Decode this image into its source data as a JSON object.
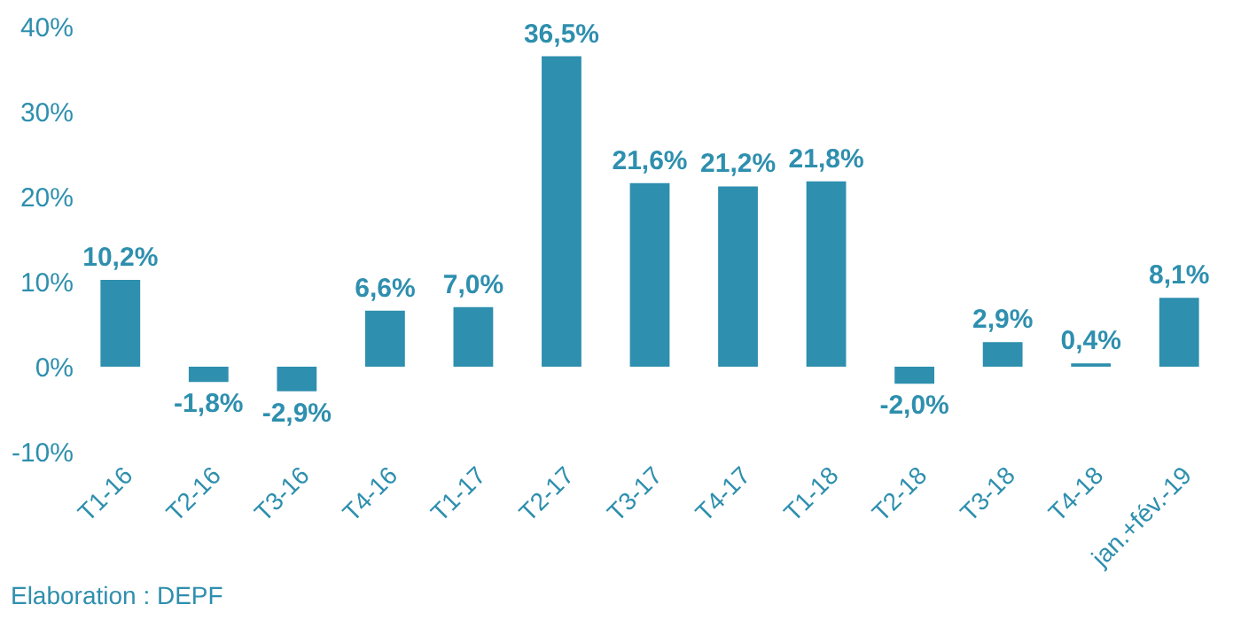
{
  "chart_data": {
    "type": "bar",
    "categories": [
      "T1-16",
      "T2-16",
      "T3-16",
      "T4-16",
      "T1-17",
      "T2-17",
      "T3-17",
      "T4-17",
      "T1-18",
      "T2-18",
      "T3-18",
      "T4-18",
      "jan.+fév.-19"
    ],
    "values": [
      10.2,
      -1.8,
      -2.9,
      6.6,
      7.0,
      36.5,
      21.6,
      21.2,
      21.8,
      -2.0,
      2.9,
      0.4,
      8.1
    ],
    "value_labels": [
      "10,2%",
      "-1,8%",
      "-2,9%",
      "6,6%",
      "7,0%",
      "36,5%",
      "21,6%",
      "21,2%",
      "21,8%",
      "-2,0%",
      "2,9%",
      "0,4%",
      "8,1%"
    ],
    "color": "#2e8fae",
    "ylim": [
      -10,
      40
    ],
    "yticks": [
      {
        "value": -10,
        "label": "-10%"
      },
      {
        "value": 0,
        "label": "0%"
      },
      {
        "value": 10,
        "label": "10%"
      },
      {
        "value": 20,
        "label": "20%"
      },
      {
        "value": 30,
        "label": "30%"
      },
      {
        "value": 40,
        "label": "40%"
      }
    ],
    "grid": false,
    "annotations": [
      "Elaboration : DEPF"
    ]
  }
}
